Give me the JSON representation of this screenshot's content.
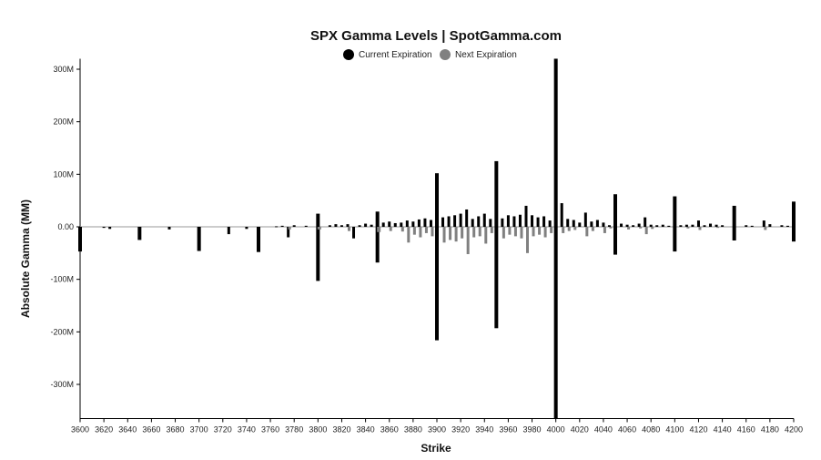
{
  "chart_data": {
    "type": "bar",
    "title": "SPX Gamma Levels | SpotGamma.com",
    "xlabel": "Strike",
    "ylabel": "Absolute Gamma (MM)",
    "ylim": [
      -365,
      320
    ],
    "xlim": [
      3600,
      4200
    ],
    "yticks": [
      300,
      200,
      100,
      0,
      -100,
      -200,
      -300
    ],
    "ytick_labels": [
      "300M",
      "200M",
      "100M",
      "0.00",
      "-100M",
      "-200M",
      "-300M"
    ],
    "xticks": [
      3600,
      3620,
      3640,
      3660,
      3680,
      3700,
      3720,
      3740,
      3760,
      3780,
      3800,
      3820,
      3840,
      3860,
      3880,
      3900,
      3920,
      3940,
      3960,
      3980,
      4000,
      4020,
      4040,
      4060,
      4080,
      4100,
      4120,
      4140,
      4160,
      4180,
      4200
    ],
    "grid": false,
    "legend": {
      "position": "top-center"
    },
    "series": [
      {
        "name": "Current Expiration",
        "color": "#000000",
        "points": [
          [
            3600,
            -47
          ],
          [
            3620,
            -2
          ],
          [
            3625,
            -4
          ],
          [
            3650,
            -25
          ],
          [
            3675,
            -5
          ],
          [
            3700,
            -46
          ],
          [
            3725,
            -14
          ],
          [
            3740,
            -4
          ],
          [
            3750,
            -48
          ],
          [
            3765,
            1
          ],
          [
            3770,
            2
          ],
          [
            3775,
            -20
          ],
          [
            3780,
            3
          ],
          [
            3790,
            2
          ],
          [
            3800,
            25
          ],
          [
            3800,
            -103
          ],
          [
            3810,
            3
          ],
          [
            3815,
            5
          ],
          [
            3820,
            3
          ],
          [
            3825,
            5
          ],
          [
            3830,
            -22
          ],
          [
            3835,
            3
          ],
          [
            3840,
            6
          ],
          [
            3845,
            4
          ],
          [
            3850,
            29
          ],
          [
            3850,
            -68
          ],
          [
            3855,
            8
          ],
          [
            3860,
            10
          ],
          [
            3865,
            7
          ],
          [
            3870,
            8
          ],
          [
            3875,
            12
          ],
          [
            3880,
            10
          ],
          [
            3885,
            14
          ],
          [
            3890,
            16
          ],
          [
            3895,
            13
          ],
          [
            3900,
            102
          ],
          [
            3900,
            -216
          ],
          [
            3905,
            18
          ],
          [
            3910,
            20
          ],
          [
            3915,
            22
          ],
          [
            3920,
            25
          ],
          [
            3925,
            33
          ],
          [
            3930,
            15
          ],
          [
            3935,
            20
          ],
          [
            3940,
            25
          ],
          [
            3945,
            15
          ],
          [
            3950,
            125
          ],
          [
            3950,
            -193
          ],
          [
            3955,
            16
          ],
          [
            3960,
            22
          ],
          [
            3965,
            20
          ],
          [
            3970,
            23
          ],
          [
            3975,
            40
          ],
          [
            3980,
            22
          ],
          [
            3985,
            18
          ],
          [
            3990,
            20
          ],
          [
            3995,
            12
          ],
          [
            4000,
            320
          ],
          [
            4000,
            -365
          ],
          [
            4005,
            45
          ],
          [
            4010,
            15
          ],
          [
            4015,
            13
          ],
          [
            4020,
            8
          ],
          [
            4025,
            27
          ],
          [
            4030,
            10
          ],
          [
            4035,
            13
          ],
          [
            4040,
            8
          ],
          [
            4045,
            3
          ],
          [
            4050,
            62
          ],
          [
            4050,
            -53
          ],
          [
            4055,
            6
          ],
          [
            4060,
            4
          ],
          [
            4065,
            3
          ],
          [
            4070,
            6
          ],
          [
            4075,
            18
          ],
          [
            4080,
            4
          ],
          [
            4085,
            3
          ],
          [
            4090,
            4
          ],
          [
            4095,
            2
          ],
          [
            4100,
            58
          ],
          [
            4100,
            -47
          ],
          [
            4105,
            3
          ],
          [
            4110,
            4
          ],
          [
            4115,
            4
          ],
          [
            4120,
            12
          ],
          [
            4125,
            3
          ],
          [
            4130,
            6
          ],
          [
            4135,
            4
          ],
          [
            4140,
            3
          ],
          [
            4150,
            40
          ],
          [
            4150,
            -26
          ],
          [
            4160,
            3
          ],
          [
            4165,
            2
          ],
          [
            4175,
            12
          ],
          [
            4180,
            5
          ],
          [
            4190,
            3
          ],
          [
            4195,
            2
          ],
          [
            4200,
            48
          ],
          [
            4200,
            -28
          ]
        ]
      },
      {
        "name": "Next Expiration",
        "color": "#808080",
        "points": [
          [
            3775,
            -5
          ],
          [
            3800,
            -5
          ],
          [
            3825,
            -8
          ],
          [
            3850,
            -10
          ],
          [
            3860,
            -8
          ],
          [
            3870,
            -9
          ],
          [
            3875,
            -30
          ],
          [
            3880,
            -15
          ],
          [
            3885,
            -20
          ],
          [
            3890,
            -12
          ],
          [
            3895,
            -18
          ],
          [
            3905,
            -30
          ],
          [
            3910,
            -25
          ],
          [
            3915,
            -28
          ],
          [
            3920,
            -22
          ],
          [
            3925,
            -52
          ],
          [
            3930,
            -20
          ],
          [
            3935,
            -18
          ],
          [
            3940,
            -32
          ],
          [
            3945,
            -12
          ],
          [
            3955,
            -22
          ],
          [
            3960,
            -15
          ],
          [
            3965,
            -18
          ],
          [
            3970,
            -22
          ],
          [
            3975,
            -50
          ],
          [
            3980,
            -18
          ],
          [
            3985,
            -15
          ],
          [
            3990,
            -20
          ],
          [
            3995,
            -12
          ],
          [
            4005,
            -12
          ],
          [
            4010,
            -8
          ],
          [
            4015,
            -6
          ],
          [
            4025,
            -18
          ],
          [
            4030,
            -8
          ],
          [
            4040,
            -12
          ],
          [
            4045,
            -3
          ],
          [
            4060,
            -5
          ],
          [
            4070,
            -3
          ],
          [
            4075,
            -14
          ],
          [
            4080,
            -4
          ],
          [
            4110,
            -3
          ],
          [
            4120,
            -6
          ],
          [
            4135,
            -2
          ],
          [
            4175,
            -6
          ]
        ]
      }
    ]
  }
}
